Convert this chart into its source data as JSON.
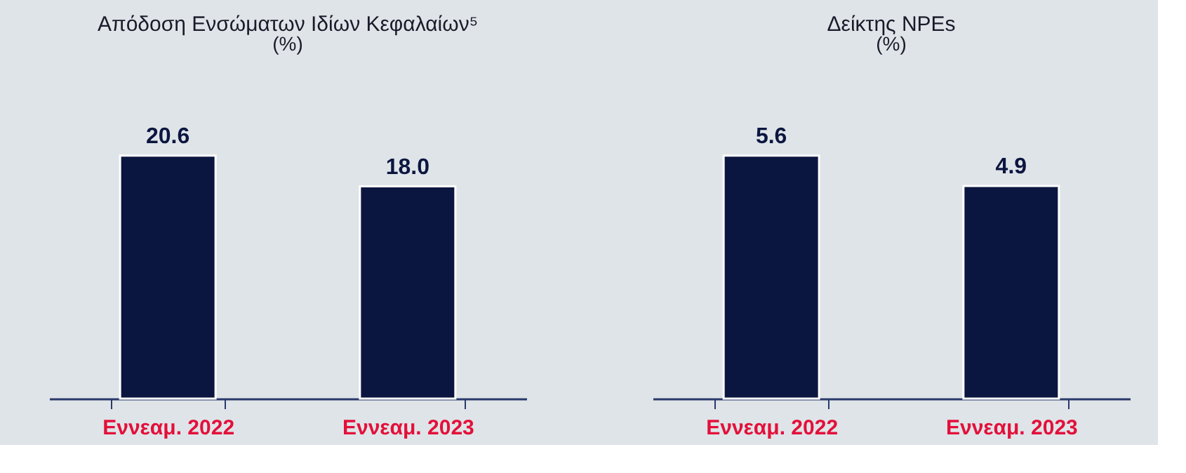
{
  "chart_data": [
    {
      "type": "bar",
      "title": "Απόδοση Ενσώματων Ιδίων Κεφαλαίων⁵",
      "subtitle": "(%)",
      "categories": [
        "Εννεαμ. 2022",
        "Εννεαμ. 2023"
      ],
      "values": [
        20.6,
        18.0
      ],
      "value_labels": [
        "20.6",
        "18.0"
      ],
      "color": "#0b1640"
    },
    {
      "type": "bar",
      "title": "Δείκτης NPEs",
      "subtitle": "(%)",
      "categories": [
        "Εννεαμ. 2022",
        "Εννεαμ. 2023"
      ],
      "values": [
        5.6,
        4.9
      ],
      "value_labels": [
        "5.6",
        "4.9"
      ],
      "color": "#0b1640"
    }
  ]
}
